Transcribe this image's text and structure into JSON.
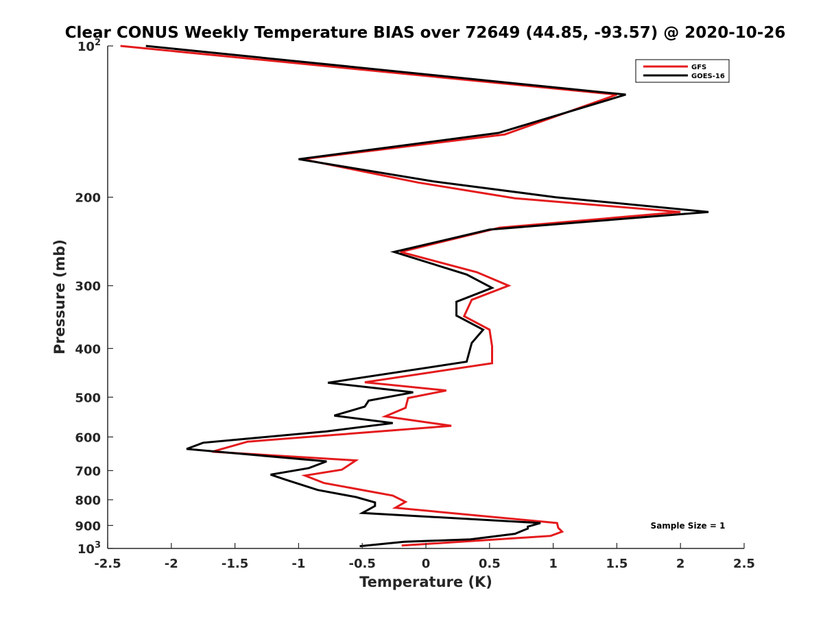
{
  "chart_data": {
    "type": "line",
    "title": "Clear CONUS Weekly Temperature BIAS over 72649 (44.85, -93.57) @ 2020-10-26",
    "xlabel": "Temperature (K)",
    "ylabel": "Pressure (mb)",
    "xlim": [
      -2.5,
      2.5
    ],
    "ylim": [
      100,
      1000
    ],
    "y_scale": "log",
    "y_direction": "reversed",
    "grid": false,
    "legend_position": "top-right",
    "x_ticks": [
      {
        "value": -2.5,
        "label": "-2.5"
      },
      {
        "value": -2,
        "label": "-2"
      },
      {
        "value": -1.5,
        "label": "-1.5"
      },
      {
        "value": -1,
        "label": "-1"
      },
      {
        "value": -0.5,
        "label": "-0.5"
      },
      {
        "value": 0,
        "label": "0"
      },
      {
        "value": 0.5,
        "label": "0.5"
      },
      {
        "value": 1,
        "label": "1"
      },
      {
        "value": 1.5,
        "label": "1.5"
      },
      {
        "value": 2,
        "label": "2"
      },
      {
        "value": 2.5,
        "label": "2.5"
      }
    ],
    "y_ticks": [
      {
        "value": 100,
        "label": "10",
        "sup": "2"
      },
      {
        "value": 200,
        "label": "200",
        "sup": ""
      },
      {
        "value": 300,
        "label": "300",
        "sup": ""
      },
      {
        "value": 400,
        "label": "400",
        "sup": ""
      },
      {
        "value": 500,
        "label": "500",
        "sup": ""
      },
      {
        "value": 600,
        "label": "600",
        "sup": ""
      },
      {
        "value": 700,
        "label": "700",
        "sup": ""
      },
      {
        "value": 800,
        "label": "800",
        "sup": ""
      },
      {
        "value": 900,
        "label": "900",
        "sup": ""
      },
      {
        "value": 1000,
        "label": "10",
        "sup": "3"
      }
    ],
    "series": [
      {
        "name": "GFS",
        "color": "#e41a1c",
        "points": [
          {
            "x": -2.4,
            "y": 100
          },
          {
            "x": 1.5,
            "y": 125
          },
          {
            "x": 0.62,
            "y": 150
          },
          {
            "x": -0.97,
            "y": 168
          },
          {
            "x": -0.06,
            "y": 187
          },
          {
            "x": 0.7,
            "y": 201
          },
          {
            "x": 2.0,
            "y": 214
          },
          {
            "x": 0.58,
            "y": 230
          },
          {
            "x": -0.2,
            "y": 257
          },
          {
            "x": 0.4,
            "y": 282
          },
          {
            "x": 0.65,
            "y": 300
          },
          {
            "x": 0.36,
            "y": 320
          },
          {
            "x": 0.3,
            "y": 345
          },
          {
            "x": 0.5,
            "y": 367
          },
          {
            "x": 0.52,
            "y": 396
          },
          {
            "x": 0.52,
            "y": 428
          },
          {
            "x": -0.48,
            "y": 467
          },
          {
            "x": 0.16,
            "y": 485
          },
          {
            "x": -0.14,
            "y": 502
          },
          {
            "x": -0.16,
            "y": 525
          },
          {
            "x": -0.32,
            "y": 546
          },
          {
            "x": 0.2,
            "y": 570
          },
          {
            "x": -1.4,
            "y": 613
          },
          {
            "x": -1.68,
            "y": 642
          },
          {
            "x": -0.55,
            "y": 668
          },
          {
            "x": -0.66,
            "y": 697
          },
          {
            "x": -0.95,
            "y": 716
          },
          {
            "x": -0.8,
            "y": 741
          },
          {
            "x": -0.26,
            "y": 785
          },
          {
            "x": -0.16,
            "y": 808
          },
          {
            "x": -0.24,
            "y": 830
          },
          {
            "x": 1.03,
            "y": 890
          },
          {
            "x": 1.04,
            "y": 910
          },
          {
            "x": 1.07,
            "y": 926
          },
          {
            "x": 0.98,
            "y": 944
          },
          {
            "x": -0.19,
            "y": 987
          }
        ]
      },
      {
        "name": "GOES-16",
        "color": "#000000",
        "points": [
          {
            "x": -2.2,
            "y": 100
          },
          {
            "x": 1.57,
            "y": 125
          },
          {
            "x": 0.57,
            "y": 149
          },
          {
            "x": -1.0,
            "y": 168
          },
          {
            "x": 0.06,
            "y": 186
          },
          {
            "x": 1.02,
            "y": 200
          },
          {
            "x": 2.22,
            "y": 214
          },
          {
            "x": 0.5,
            "y": 232
          },
          {
            "x": -0.25,
            "y": 257
          },
          {
            "x": 0.32,
            "y": 285
          },
          {
            "x": 0.52,
            "y": 303
          },
          {
            "x": 0.24,
            "y": 323
          },
          {
            "x": 0.24,
            "y": 344
          },
          {
            "x": 0.45,
            "y": 367
          },
          {
            "x": 0.36,
            "y": 390
          },
          {
            "x": 0.32,
            "y": 425
          },
          {
            "x": -0.77,
            "y": 468
          },
          {
            "x": -0.1,
            "y": 489
          },
          {
            "x": -0.45,
            "y": 508
          },
          {
            "x": -0.48,
            "y": 522
          },
          {
            "x": -0.72,
            "y": 544
          },
          {
            "x": -0.26,
            "y": 563
          },
          {
            "x": -0.78,
            "y": 585
          },
          {
            "x": -1.75,
            "y": 616
          },
          {
            "x": -1.88,
            "y": 634
          },
          {
            "x": -0.78,
            "y": 671
          },
          {
            "x": -0.92,
            "y": 692
          },
          {
            "x": -1.22,
            "y": 713
          },
          {
            "x": -1.1,
            "y": 730
          },
          {
            "x": -0.85,
            "y": 765
          },
          {
            "x": -0.55,
            "y": 790
          },
          {
            "x": -0.4,
            "y": 810
          },
          {
            "x": -0.4,
            "y": 823
          },
          {
            "x": -0.5,
            "y": 850
          },
          {
            "x": 0.9,
            "y": 890
          },
          {
            "x": 0.8,
            "y": 905
          },
          {
            "x": 0.8,
            "y": 913
          },
          {
            "x": 0.7,
            "y": 935
          },
          {
            "x": 0.35,
            "y": 959
          },
          {
            "x": -0.17,
            "y": 970
          },
          {
            "x": -0.52,
            "y": 990
          }
        ]
      }
    ],
    "annotation": "Sample Size = 1"
  }
}
